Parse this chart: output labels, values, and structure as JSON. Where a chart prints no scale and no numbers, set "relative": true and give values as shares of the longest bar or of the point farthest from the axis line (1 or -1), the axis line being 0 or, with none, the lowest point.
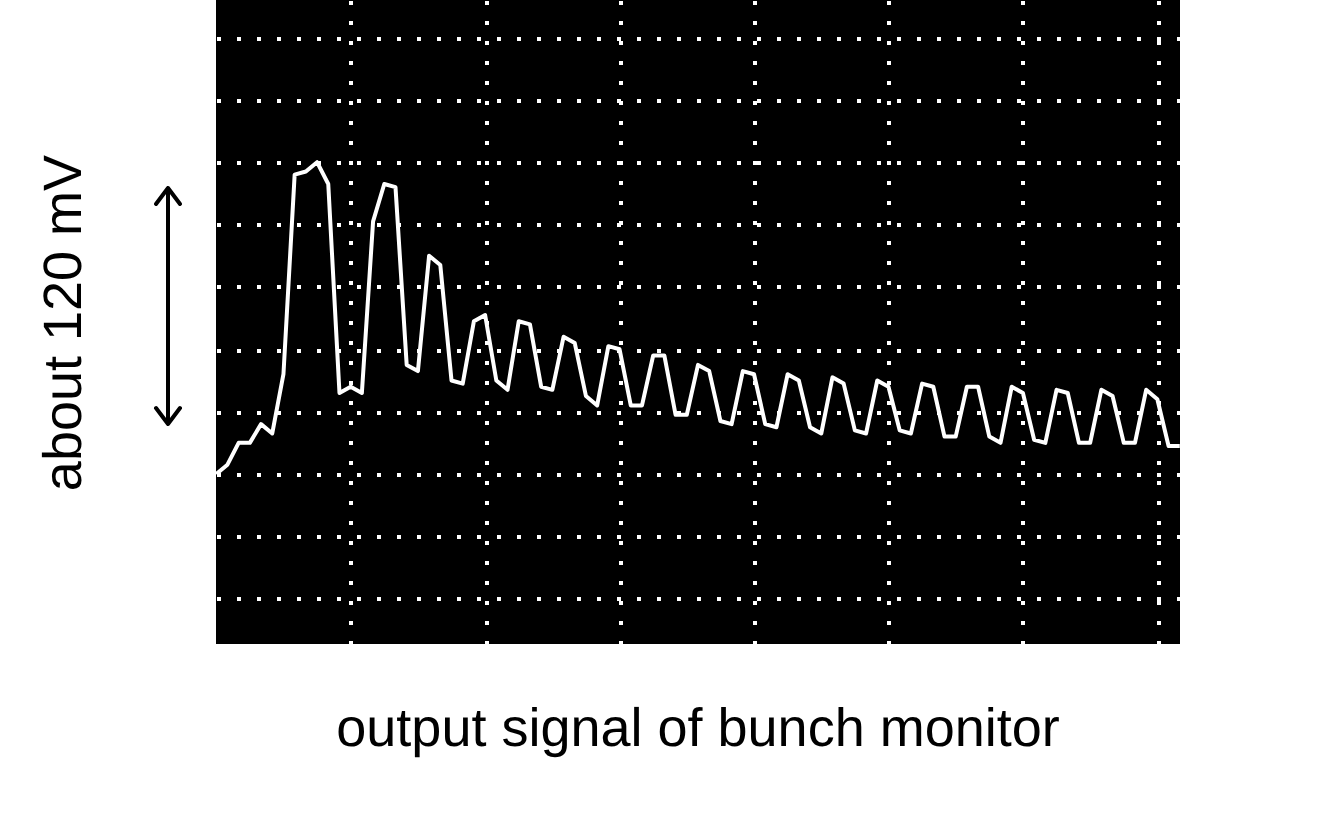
{
  "chart_data": {
    "type": "line",
    "relative": true,
    "title": "output signal of bunch monitor",
    "ylabel": "about 120 mV",
    "categories": [
      null,
      null,
      null,
      null,
      null,
      null,
      null,
      null,
      null,
      null,
      null,
      null,
      null,
      null,
      null,
      null,
      null,
      null,
      null,
      null,
      null,
      null,
      null,
      null,
      null,
      null,
      null,
      null,
      null,
      null,
      null,
      null,
      null,
      null,
      null,
      null,
      null,
      null,
      null,
      null,
      null,
      null,
      null,
      null,
      null,
      null,
      null,
      null,
      null,
      null,
      null,
      null,
      null,
      null,
      null,
      null,
      null,
      null,
      null,
      null,
      null,
      null,
      null,
      null,
      null,
      null,
      null,
      null,
      null,
      null,
      null,
      null,
      null,
      null,
      null,
      null,
      null,
      null,
      null,
      null,
      null,
      null,
      null,
      null,
      null,
      null,
      null
    ],
    "series": [
      {
        "color": "#ffffff",
        "values": [
          0,
          0.03,
          0.1,
          0.1,
          0.16,
          0.13,
          0.32,
          0.96,
          0.97,
          1.0,
          0.93,
          0.26,
          0.28,
          0.26,
          0.81,
          0.93,
          0.92,
          0.35,
          0.33,
          0.7,
          0.67,
          0.3,
          0.29,
          0.49,
          0.51,
          0.3,
          0.27,
          0.49,
          0.48,
          0.28,
          0.27,
          0.44,
          0.42,
          0.25,
          0.22,
          0.41,
          0.4,
          0.22,
          0.22,
          0.38,
          0.38,
          0.19,
          0.19,
          0.35,
          0.33,
          0.17,
          0.16,
          0.33,
          0.32,
          0.16,
          0.15,
          0.32,
          0.3,
          0.15,
          0.13,
          0.31,
          0.29,
          0.14,
          0.13,
          0.3,
          0.28,
          0.14,
          0.13,
          0.29,
          0.28,
          0.12,
          0.12,
          0.28,
          0.28,
          0.12,
          0.1,
          0.28,
          0.26,
          0.11,
          0.1,
          0.27,
          0.26,
          0.1,
          0.1,
          0.27,
          0.25,
          0.1,
          0.1,
          0.27,
          0.24,
          0.09,
          0.09
        ]
      }
    ],
    "grid": true,
    "marker": "none",
    "line_style": "solid"
  }
}
